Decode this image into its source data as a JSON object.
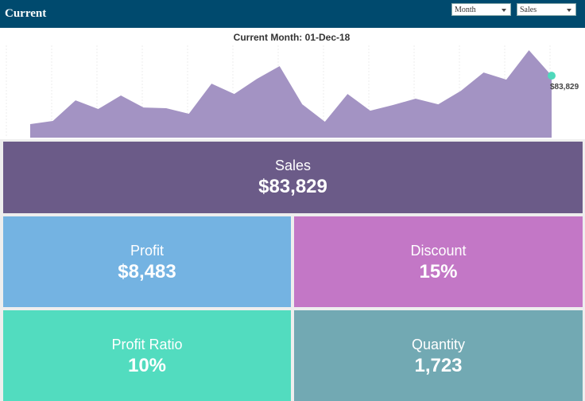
{
  "header": {
    "title": "Current",
    "filters": [
      "Month",
      "Sales"
    ]
  },
  "chart_data": {
    "type": "area",
    "title": "Current Month:  01-Dec-18",
    "values": [
      18300,
      22600,
      50500,
      38700,
      57000,
      40800,
      39800,
      32300,
      73100,
      59100,
      79500,
      96700,
      45100,
      21500,
      59100,
      36500,
      44100,
      52700,
      45100,
      63400,
      88100,
      78500,
      118200,
      83829
    ],
    "value_labels": [
      null,
      null,
      null,
      null,
      null,
      null,
      null,
      null,
      null,
      null,
      null,
      null,
      null,
      null,
      null,
      null,
      null,
      null,
      null,
      null,
      null,
      null,
      null,
      "$83,829"
    ],
    "ylim": [
      0,
      127000
    ],
    "color": "#a393c3",
    "marker_color": "#4fd8bb"
  },
  "tiles": [
    {
      "label": "Sales",
      "value": "$83,829",
      "color": "#6b5b88"
    },
    {
      "label": "Profit",
      "value": "$8,483",
      "color": "#74b3e2"
    },
    {
      "label": "Discount",
      "value": "15%",
      "color": "#c377c6"
    },
    {
      "label": "Profit Ratio",
      "value": "10%",
      "color": "#52dcbf"
    },
    {
      "label": "Quantity",
      "value": "1,723",
      "color": "#72a9b3"
    }
  ]
}
